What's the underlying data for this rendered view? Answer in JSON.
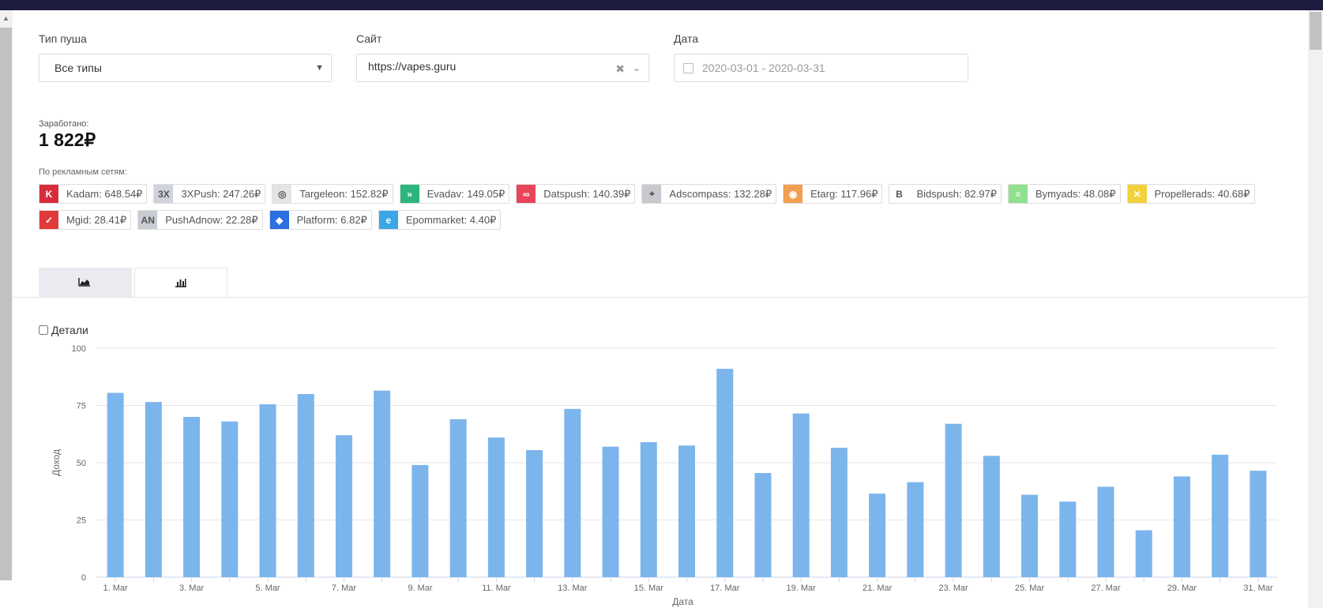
{
  "filters": {
    "push_type": {
      "label": "Тип пуша",
      "value": "Все типы"
    },
    "site": {
      "label": "Сайт",
      "value": "https://vapes.guru"
    },
    "date": {
      "label": "Дата",
      "value": "2020-03-01 - 2020-03-31"
    }
  },
  "earned": {
    "label": "Заработано:",
    "value": "1 822₽"
  },
  "networks": {
    "label": "По рекламным сетям:",
    "rows": [
      [
        {
          "text": "Kadam: 648.54₽",
          "icon": "kadam-logo-icon",
          "color": "#d72c3c",
          "glyph": "K"
        },
        {
          "text": "3XPush: 247.26₽",
          "icon": "3xpush-logo-icon",
          "color": "#cfd3db",
          "glyph": "3X"
        },
        {
          "text": "Targeleon: 152.82₽",
          "icon": "targeleon-logo-icon",
          "color": "#e4e4e4",
          "glyph": "◎"
        },
        {
          "text": "Evadav: 149.05₽",
          "icon": "evadav-logo-icon",
          "color": "#2cb67d",
          "glyph": "»"
        },
        {
          "text": "Datspush: 140.39₽",
          "icon": "datspush-logo-icon",
          "color": "#e8455a",
          "glyph": "∞"
        },
        {
          "text": "Adscompass: 132.28₽",
          "icon": "adscompass-logo-icon",
          "color": "#c7c9ce",
          "glyph": "⌖"
        },
        {
          "text": "Etarg: 117.96₽",
          "icon": "etarg-logo-icon",
          "color": "#f0a050",
          "glyph": "◉"
        },
        {
          "text": "Bidspush: 82.97₽",
          "icon": "bidspush-logo-icon",
          "color": "#ffffff",
          "glyph": "B"
        },
        {
          "text": "Bymyads: 48.08₽",
          "icon": "bymyads-logo-icon",
          "color": "#8fe08f",
          "glyph": "≡"
        },
        {
          "text": "Propellerads: 40.68₽",
          "icon": "propellerads-logo-icon",
          "color": "#f2d23a",
          "glyph": "✕"
        }
      ],
      [
        {
          "text": "Mgid: 28.41₽",
          "icon": "mgid-logo-icon",
          "color": "#e03a3a",
          "glyph": "✓"
        },
        {
          "text": "PushAdnow: 22.28₽",
          "icon": "pushadnow-logo-icon",
          "color": "#c9ccd2",
          "glyph": "AN"
        },
        {
          "text": "Platform: 6.82₽",
          "icon": "platform-logo-icon",
          "color": "#2b6fe0",
          "glyph": "◆"
        },
        {
          "text": "Epommarket: 4.40₽",
          "icon": "epommarket-logo-icon",
          "color": "#3aa6e6",
          "glyph": "e"
        }
      ]
    ]
  },
  "tabs": [
    {
      "name": "area-chart-tab",
      "icon": "area-chart-icon"
    },
    {
      "name": "bar-chart-tab",
      "icon": "bar-chart-icon",
      "active": true
    }
  ],
  "details_label": "Детали",
  "chart_data": {
    "type": "bar",
    "xlabel": "Дата",
    "ylabel": "Доход",
    "ylim": [
      0,
      100
    ],
    "yticks": [
      0,
      25,
      50,
      75,
      100
    ],
    "grid": true,
    "bar_color": "#7cb5ec",
    "categories": [
      "1. Mar",
      "2. Mar",
      "3. Mar",
      "4. Mar",
      "5. Mar",
      "6. Mar",
      "7. Mar",
      "8. Mar",
      "9. Mar",
      "10. Mar",
      "11. Mar",
      "12. Mar",
      "13. Mar",
      "14. Mar",
      "15. Mar",
      "16. Mar",
      "17. Mar",
      "18. Mar",
      "19. Mar",
      "20. Mar",
      "21. Mar",
      "22. Mar",
      "23. Mar",
      "24. Mar",
      "25. Mar",
      "26. Mar",
      "27. Mar",
      "28. Mar",
      "29. Mar",
      "30. Mar",
      "31. Mar"
    ],
    "tick_labels": [
      "1. Mar",
      "3. Mar",
      "5. Mar",
      "7. Mar",
      "9. Mar",
      "11. Mar",
      "13. Mar",
      "15. Mar",
      "17. Mar",
      "19. Mar",
      "21. Mar",
      "23. Mar",
      "25. Mar",
      "27. Mar",
      "29. Mar",
      "31. Mar"
    ],
    "values": [
      80.5,
      76.5,
      70,
      68,
      75.5,
      80,
      62,
      81.5,
      49,
      69,
      61,
      55.5,
      73.5,
      57,
      59,
      57.5,
      91,
      45.5,
      71.5,
      56.5,
      36.5,
      41.5,
      67,
      53,
      36,
      33,
      39.5,
      20.5,
      44,
      53.5,
      46.5
    ]
  }
}
